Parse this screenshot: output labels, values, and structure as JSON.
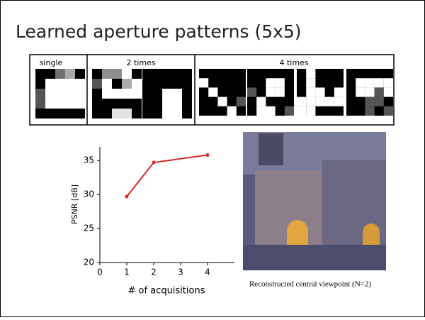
{
  "slide": {
    "title": "Learned aperture patterns (5x5)",
    "caption": "Reconstructed central viewpoint (N=2)"
  },
  "patterns": {
    "groups": [
      "single",
      "2 times",
      "4 times"
    ]
  },
  "chart_data": {
    "type": "line",
    "x": [
      1,
      2,
      4
    ],
    "values": [
      29.7,
      34.7,
      35.8
    ],
    "color": "#d62a2a",
    "xlim": [
      0,
      5
    ],
    "ylim": [
      20,
      37
    ],
    "xticks": [
      0,
      1,
      2,
      3,
      4
    ],
    "yticks": [
      20,
      25,
      30,
      35
    ],
    "xlabel": "# of acquisitions",
    "ylabel": "PSNR [dB]",
    "grid": false,
    "markers": true
  }
}
